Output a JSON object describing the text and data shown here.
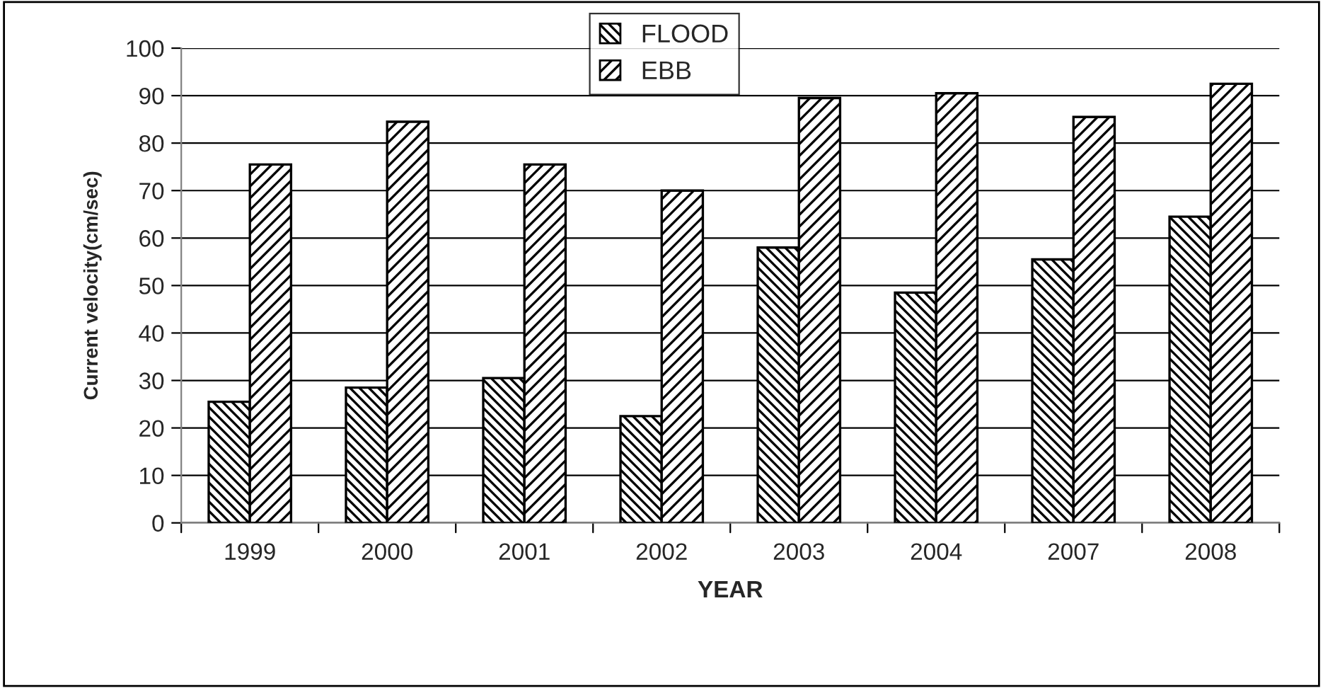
{
  "chart_data": {
    "type": "bar",
    "xlabel": "YEAR",
    "ylabel": "Current velocity(cm/sec)",
    "categories": [
      "1999",
      "2000",
      "2001",
      "2002",
      "2003",
      "2004",
      "2007",
      "2008"
    ],
    "series": [
      {
        "name": "FLOOD",
        "color": "#000000",
        "values": [
          25.5,
          28.5,
          30.5,
          22.5,
          58,
          48.5,
          55.5,
          64.5
        ]
      },
      {
        "name": "EBB",
        "color": "#000000",
        "values": [
          75.5,
          84.5,
          75.5,
          70,
          89.5,
          90.5,
          85.5,
          92.5
        ]
      }
    ],
    "ylim": [
      0,
      100
    ],
    "yticks": [
      0,
      10,
      20,
      30,
      40,
      50,
      60,
      70,
      80,
      90,
      100
    ],
    "grid": "y",
    "legend": "top"
  }
}
